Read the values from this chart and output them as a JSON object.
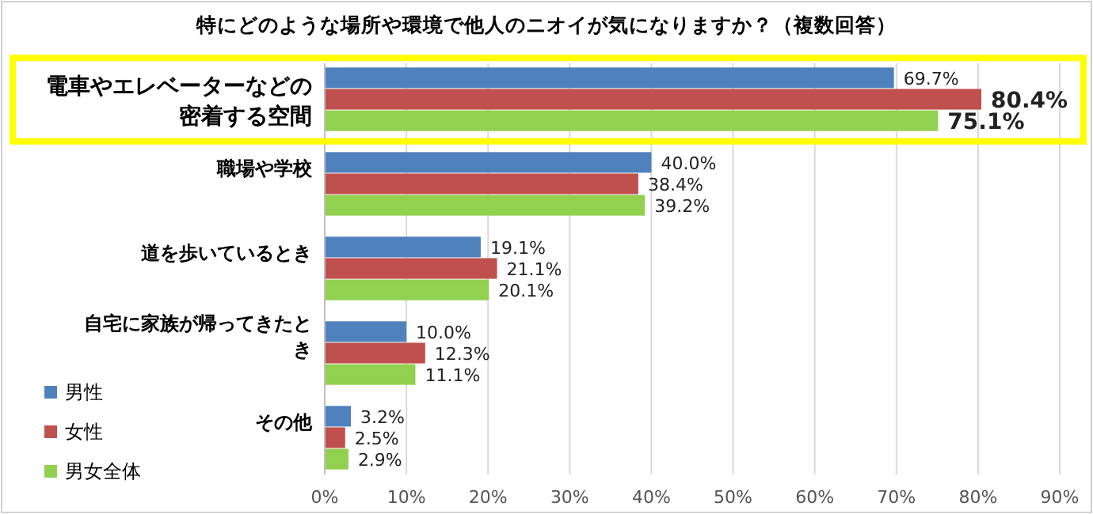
{
  "chart_data": {
    "type": "bar",
    "orientation": "horizontal",
    "title": "特にどのような場所や環境で他人のニオイが気になりますか？（複数回答）",
    "categories": [
      "電車やエレベーターなどの密着する空間",
      "職場や学校",
      "道を歩いているとき",
      "自宅に家族が帰ってきたとき",
      "その他"
    ],
    "series": [
      {
        "name": "男性",
        "color": "#4f81bd",
        "values": [
          69.7,
          40.0,
          19.1,
          10.0,
          3.2
        ],
        "value_labels": [
          "69.7%",
          "40.0%",
          "19.1%",
          "10.0%",
          "3.2%"
        ]
      },
      {
        "name": "女性",
        "color": "#c0504d",
        "values": [
          80.4,
          38.4,
          21.1,
          12.3,
          2.5
        ],
        "value_labels": [
          "80.4%",
          "38.4%",
          "21.1%",
          "12.3%",
          "2.5%"
        ]
      },
      {
        "name": "男女全体",
        "color": "#92d050",
        "values": [
          75.1,
          39.2,
          20.1,
          11.1,
          2.9
        ],
        "value_labels": [
          "75.1%",
          "39.2%",
          "20.1%",
          "11.1%",
          "2.9%"
        ]
      }
    ],
    "xlim": [
      0,
      90
    ],
    "xticks": [
      {
        "value": 0,
        "label": "0%"
      },
      {
        "value": 10,
        "label": "10%"
      },
      {
        "value": 20,
        "label": "20%"
      },
      {
        "value": 30,
        "label": "30%"
      },
      {
        "value": 40,
        "label": "40%"
      },
      {
        "value": 50,
        "label": "50%"
      },
      {
        "value": 60,
        "label": "60%"
      },
      {
        "value": 70,
        "label": "70%"
      },
      {
        "value": 80,
        "label": "80%"
      },
      {
        "value": 90,
        "label": "90%"
      }
    ],
    "grid": "x",
    "legend": "bottom left"
  }
}
